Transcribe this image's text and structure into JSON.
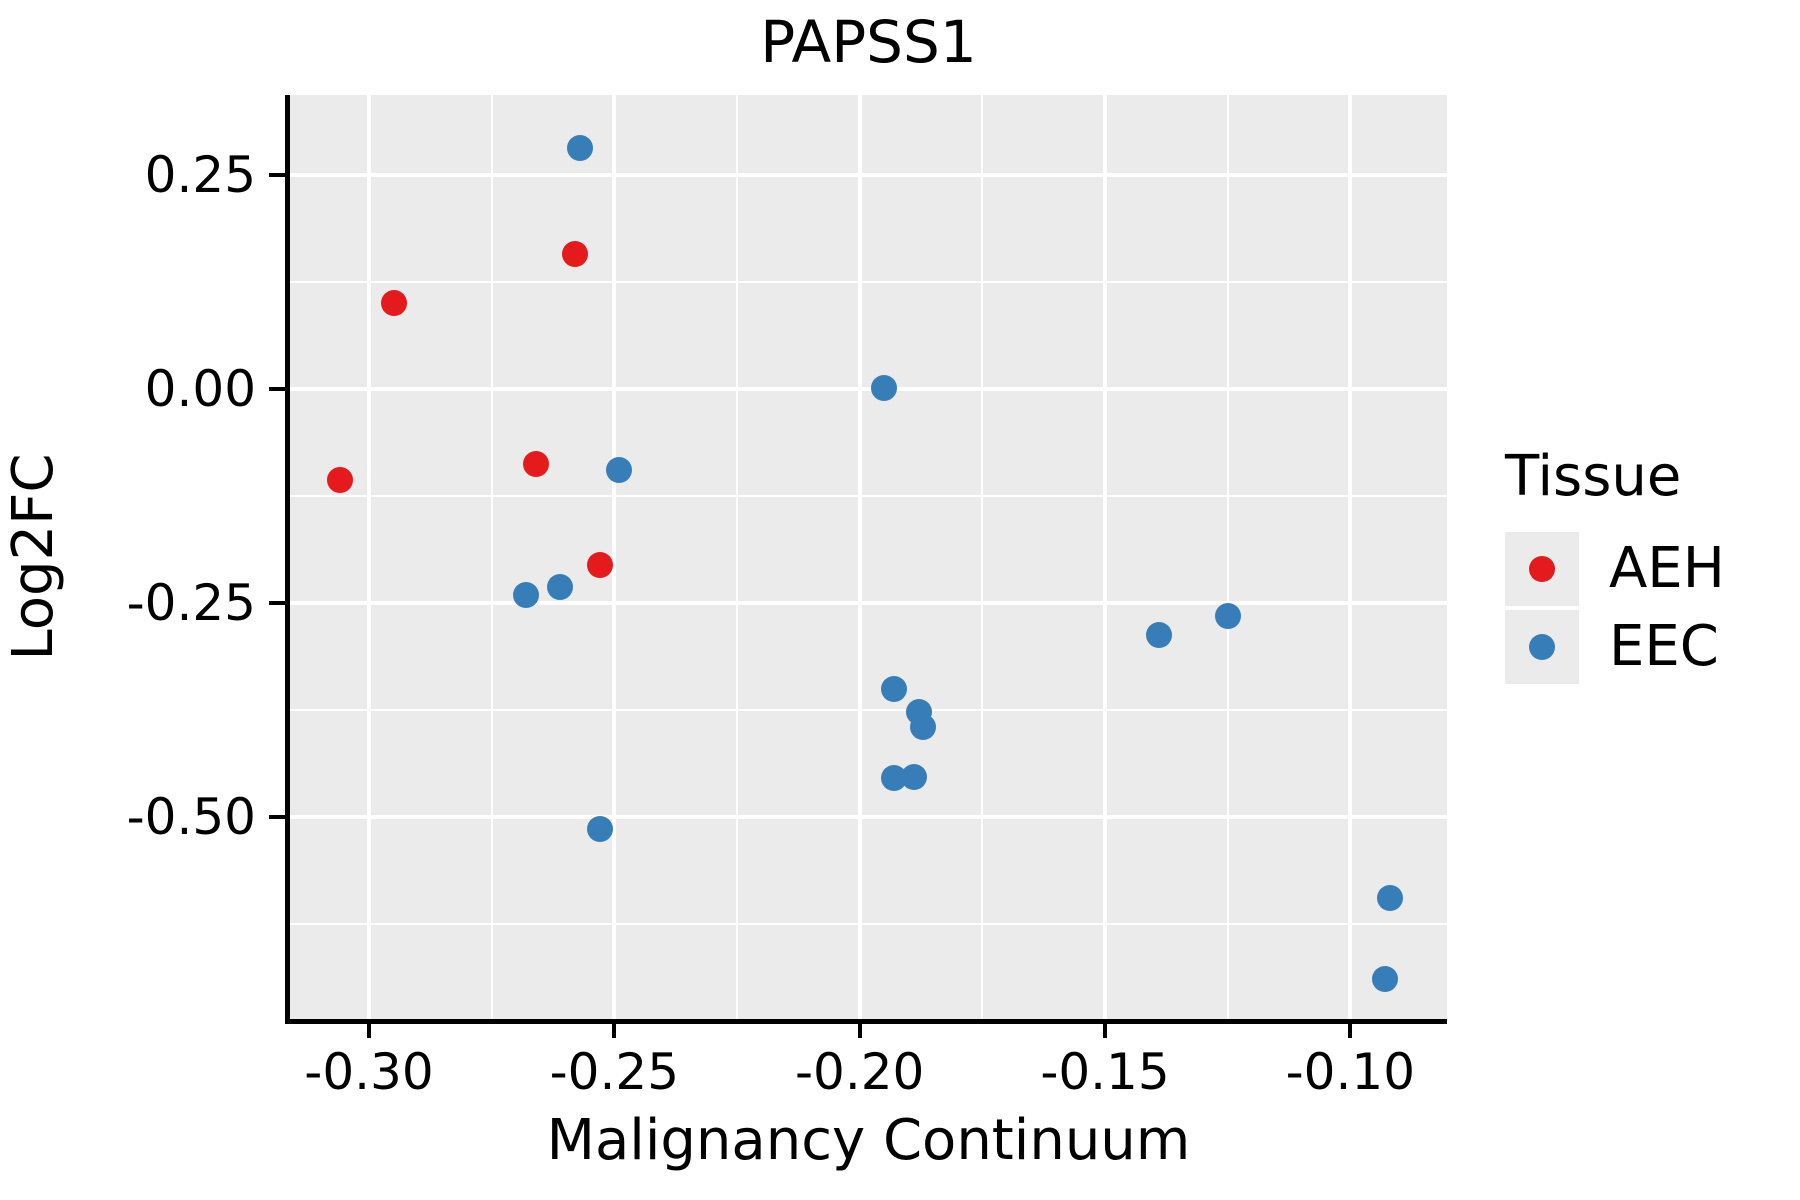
{
  "title": "PAPSS1",
  "axes": {
    "x_label": "Malignancy Continuum",
    "y_label": "Log2FC"
  },
  "legend": {
    "title": "Tissue",
    "entries": [
      {
        "label": "AEH",
        "color": "#E41A1C"
      },
      {
        "label": "EEC",
        "color": "#377EB8"
      }
    ]
  },
  "colors": {
    "panel_background": "#EBEBEB",
    "gridline": "#FFFFFF",
    "spine": "#000000",
    "aeh": "#E41A1C",
    "eec": "#377EB8"
  },
  "chart_data": {
    "type": "scatter",
    "title": "PAPSS1",
    "xlabel": "Malignancy Continuum",
    "ylabel": "Log2FC",
    "xlim": [
      -0.3161,
      -0.0803
    ],
    "ylim": [
      -0.736,
      0.3435
    ],
    "x_ticks": [
      -0.3,
      -0.25,
      -0.2,
      -0.15,
      -0.1
    ],
    "x_tick_labels": [
      "-0.30",
      "-0.25",
      "-0.20",
      "-0.15",
      "-0.10"
    ],
    "x_minor_ticks": [
      -0.275,
      -0.225,
      -0.175,
      -0.125
    ],
    "y_ticks": [
      0.25,
      0.0,
      -0.25,
      -0.5
    ],
    "y_tick_labels": [
      "0.25",
      "0.00",
      "-0.25",
      "-0.50"
    ],
    "y_minor_ticks": [
      0.125,
      -0.125,
      -0.375,
      -0.625
    ],
    "grid": true,
    "legend_position": "right",
    "series": [
      {
        "name": "AEH",
        "color": "#E41A1C",
        "points": [
          [
            -0.258,
            0.158
          ],
          [
            -0.295,
            0.1
          ],
          [
            -0.306,
            -0.106
          ],
          [
            -0.266,
            -0.088
          ],
          [
            -0.253,
            -0.206
          ]
        ]
      },
      {
        "name": "EEC",
        "color": "#377EB8",
        "points": [
          [
            -0.257,
            0.282
          ],
          [
            -0.249,
            -0.095
          ],
          [
            -0.268,
            -0.241
          ],
          [
            -0.261,
            -0.231
          ],
          [
            -0.253,
            -0.514
          ],
          [
            -0.195,
            0.001
          ],
          [
            -0.193,
            -0.351
          ],
          [
            -0.188,
            -0.377
          ],
          [
            -0.187,
            -0.395
          ],
          [
            -0.193,
            -0.454
          ],
          [
            -0.189,
            -0.453
          ],
          [
            -0.139,
            -0.287
          ],
          [
            -0.125,
            -0.265
          ],
          [
            -0.092,
            -0.595
          ],
          [
            -0.093,
            -0.689
          ]
        ]
      }
    ]
  }
}
